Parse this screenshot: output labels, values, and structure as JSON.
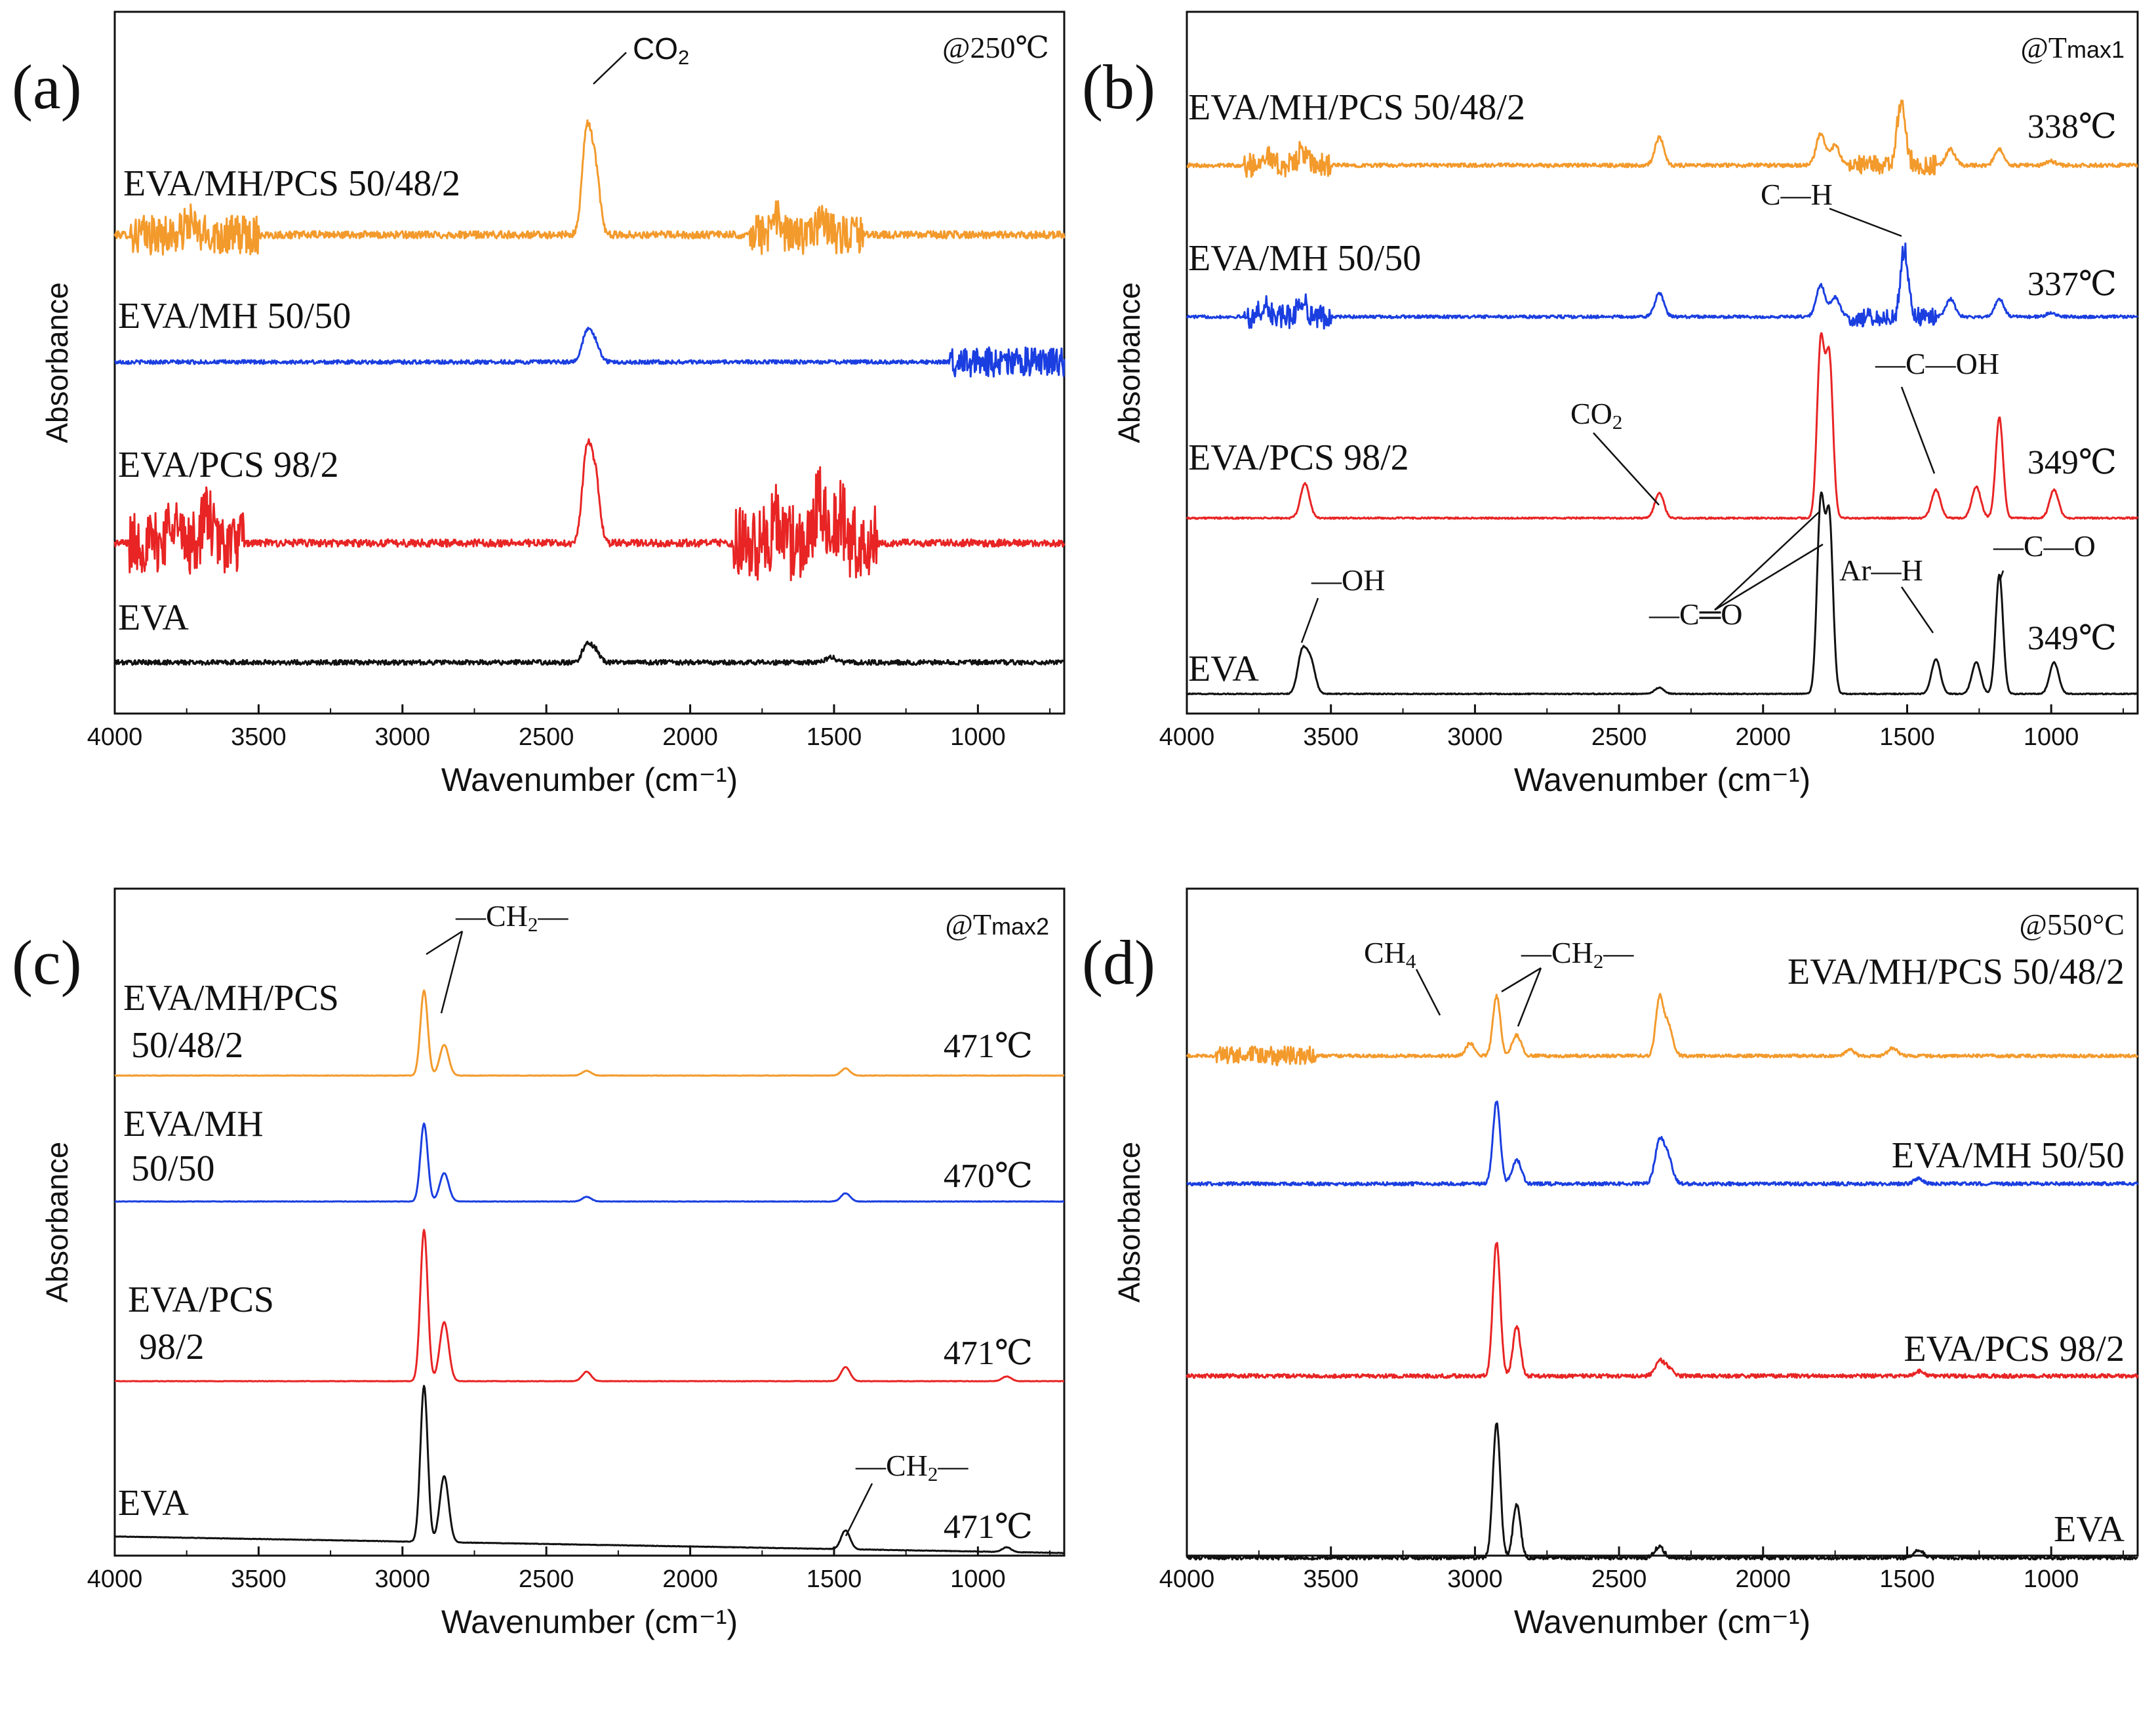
{
  "chart_data": [
    {
      "type": "line",
      "panel_label": "(a)",
      "condition": "@250℃",
      "xlabel": "Wavenumber (cm⁻¹)",
      "ylabel": "Absorbance",
      "xlim": [
        4000,
        700
      ],
      "xticks": [
        "4000",
        "3500",
        "3000",
        "2500",
        "2000",
        "1500",
        "1000"
      ],
      "series": [
        {
          "name": "EVA/MH/PCS 50/48/2",
          "color": "#f39a2c",
          "peaks": [
            [
              3740,
              0.5
            ],
            [
              2360,
              4.0
            ],
            [
              2330,
              2.6
            ],
            [
              1700,
              0.6
            ],
            [
              1540,
              0.7
            ]
          ],
          "noise": 0.3,
          "noise_regions": [
            [
              3950,
              3500,
              1.6
            ],
            [
              1800,
              1400,
              1.6
            ]
          ],
          "slope": 0
        },
        {
          "name": "EVA/MH 50/50",
          "color": "#1a3ee0",
          "peaks": [
            [
              2360,
              1.5
            ],
            [
              2330,
              1.0
            ]
          ],
          "noise": 0.2,
          "noise_regions": [
            [
              1100,
              700,
              1.5
            ]
          ],
          "slope": 0
        },
        {
          "name": "EVA/PCS 98/2",
          "color": "#e82424",
          "peaks": [
            [
              3800,
              1.2
            ],
            [
              3680,
              1.2
            ],
            [
              2360,
              3.5
            ],
            [
              2330,
              2.6
            ],
            [
              1700,
              1.0
            ],
            [
              1550,
              1.9
            ],
            [
              1480,
              1.2
            ]
          ],
          "noise": 0.3,
          "noise_regions": [
            [
              3950,
              3550,
              2.5
            ],
            [
              1850,
              1350,
              3.0
            ]
          ],
          "slope": 0
        },
        {
          "name": "EVA",
          "color": "#111111",
          "peaks": [
            [
              2360,
              0.9
            ],
            [
              2330,
              0.6
            ],
            [
              1510,
              0.3
            ]
          ],
          "noise": 0.25,
          "noise_regions": [],
          "slope": 0
        }
      ],
      "annotations": [
        {
          "text": "CO",
          "sub": "2",
          "at": 2360,
          "style": "sans"
        }
      ]
    },
    {
      "type": "line",
      "panel_label": "(b)",
      "condition": "@T",
      "condition_sub": "max1",
      "xlabel": "Wavenumber (cm⁻¹)",
      "ylabel": "Absorbance",
      "xlim": [
        4000,
        700
      ],
      "xticks": [
        "4000",
        "3500",
        "3000",
        "2500",
        "2000",
        "1500",
        "1000"
      ],
      "series": [
        {
          "name": "EVA/MH/PCS 50/48/2",
          "temp": "338℃",
          "color": "#f39a2c",
          "peaks": [
            [
              3730,
              0.6
            ],
            [
              3600,
              0.7
            ],
            [
              2360,
              1.4
            ],
            [
              1800,
              1.6
            ],
            [
              1750,
              1.0
            ],
            [
              1520,
              3.0
            ],
            [
              1350,
              0.8
            ],
            [
              1180,
              0.8
            ],
            [
              1000,
              0.2
            ]
          ],
          "noise": 0.2,
          "noise_regions": [
            [
              3800,
              3500,
              1.2
            ],
            [
              1700,
              1400,
              1.0
            ]
          ],
          "slope": 0
        },
        {
          "name": "EVA/MH 50/50",
          "temp": "337℃",
          "color": "#1a3ee0",
          "peaks": [
            [
              3730,
              0.5
            ],
            [
              3600,
              0.8
            ],
            [
              2360,
              1.2
            ],
            [
              1800,
              1.6
            ],
            [
              1750,
              1.0
            ],
            [
              1510,
              3.5
            ],
            [
              1350,
              0.9
            ],
            [
              1180,
              0.9
            ],
            [
              1000,
              0.2
            ]
          ],
          "noise": 0.15,
          "noise_regions": [
            [
              3800,
              3500,
              1.2
            ],
            [
              1700,
              1400,
              1.0
            ]
          ],
          "slope": 0
        },
        {
          "name": "EVA/PCS 98/2",
          "temp": "349℃",
          "color": "#e82424",
          "peaks": [
            [
              3590,
              1.1
            ],
            [
              2360,
              0.8
            ],
            [
              1800,
              5.5
            ],
            [
              1770,
              5.0
            ],
            [
              1400,
              0.9
            ],
            [
              1260,
              1.0
            ],
            [
              1180,
              3.2
            ],
            [
              990,
              0.9
            ]
          ],
          "noise": 0.05,
          "noise_regions": [],
          "slope": 0
        },
        {
          "name": "EVA",
          "temp": "349℃",
          "color": "#111111",
          "peaks": [
            [
              3600,
              1.3
            ],
            [
              3570,
              1.0
            ],
            [
              2360,
              0.2
            ],
            [
              1800,
              6.0
            ],
            [
              1770,
              5.5
            ],
            [
              1400,
              1.1
            ],
            [
              1260,
              1.0
            ],
            [
              1180,
              3.8
            ],
            [
              990,
              1.0
            ]
          ],
          "noise": 0.03,
          "noise_regions": [],
          "slope": 0
        }
      ],
      "annotations": [
        {
          "text": "C—H",
          "at": 1510
        },
        {
          "text": "—C—OH",
          "at": 1400
        },
        {
          "text": "CO",
          "sub": "2",
          "at": 2360
        },
        {
          "text": "—OH",
          "at": 3590
        },
        {
          "text": "—C═O",
          "at": 1790
        },
        {
          "text": "Ar—H",
          "at": 1260
        },
        {
          "text": "—C—O",
          "at": 1180
        }
      ]
    },
    {
      "type": "line",
      "panel_label": "(c)",
      "condition": "@T",
      "condition_sub": "max2",
      "xlabel": "Wavenumber (cm⁻¹)",
      "ylabel": "Absorbance",
      "xlim": [
        4000,
        700
      ],
      "xticks": [
        "4000",
        "3500",
        "3000",
        "2500",
        "2000",
        "1500",
        "1000"
      ],
      "series": [
        {
          "name": "EVA/MH/PCS",
          "name2": "50/48/2",
          "temp": "471℃",
          "color": "#f39a2c",
          "peaks": [
            [
              2925,
              3.6
            ],
            [
              2855,
              1.3
            ],
            [
              2360,
              0.2
            ],
            [
              1460,
              0.3
            ]
          ],
          "noise": 0.02,
          "noise_regions": [],
          "slope": 0
        },
        {
          "name": "EVA/MH",
          "name2": "50/50",
          "temp": "470℃",
          "color": "#1a3ee0",
          "peaks": [
            [
              2925,
              3.3
            ],
            [
              2855,
              1.2
            ],
            [
              2360,
              0.2
            ],
            [
              1460,
              0.35
            ]
          ],
          "noise": 0.02,
          "noise_regions": [],
          "slope": 0
        },
        {
          "name": "EVA/PCS",
          "name2": "98/2",
          "temp": "471℃",
          "color": "#e82424",
          "peaks": [
            [
              2925,
              6.4
            ],
            [
              2855,
              2.5
            ],
            [
              2360,
              0.4
            ],
            [
              1460,
              0.6
            ],
            [
              900,
              0.2
            ]
          ],
          "noise": 0.02,
          "noise_regions": [],
          "slope": 0
        },
        {
          "name": "EVA",
          "temp": "471℃",
          "color": "#111111",
          "peaks": [
            [
              2925,
              6.6
            ],
            [
              2855,
              2.8
            ],
            [
              1460,
              0.8
            ],
            [
              900,
              0.2
            ]
          ],
          "noise": 0.02,
          "noise_regions": [],
          "slope": 0.7
        }
      ],
      "annotations": [
        {
          "text": "—CH",
          "sub": "2",
          "tail": "—",
          "at": 2925
        },
        {
          "text": "—CH",
          "sub": "2",
          "tail": "—",
          "at": 1460
        }
      ]
    },
    {
      "type": "line",
      "panel_label": "(d)",
      "condition": "@550°C",
      "xlabel": "Wavenumber (cm⁻¹)",
      "ylabel": "Absorbance",
      "xlim": [
        4000,
        700
      ],
      "xticks": [
        "4000",
        "3500",
        "3000",
        "2500",
        "2000",
        "1500",
        "1000"
      ],
      "series": [
        {
          "name": "EVA/MH/PCS 50/48/2",
          "color": "#f39a2c",
          "peaks": [
            [
              3016,
              0.8
            ],
            [
              2925,
              3.8
            ],
            [
              2855,
              1.3
            ],
            [
              2360,
              3.5
            ],
            [
              2330,
              2.0
            ],
            [
              1700,
              0.4
            ],
            [
              1550,
              0.5
            ]
          ],
          "noise": 0.2,
          "noise_regions": [
            [
              3900,
              3550,
              1.2
            ]
          ],
          "slope": 0
        },
        {
          "name": "EVA/MH 50/50",
          "color": "#1a3ee0",
          "peaks": [
            [
              2925,
              4.8
            ],
            [
              2855,
              1.4
            ],
            [
              2360,
              2.4
            ],
            [
              2330,
              1.5
            ],
            [
              1460,
              0.3
            ]
          ],
          "noise": 0.2,
          "noise_regions": [],
          "slope": 0
        },
        {
          "name": "EVA/PCS 98/2",
          "color": "#e82424",
          "peaks": [
            [
              2925,
              8.5
            ],
            [
              2855,
              3.2
            ],
            [
              2360,
              0.9
            ],
            [
              2330,
              0.5
            ],
            [
              1460,
              0.3
            ]
          ],
          "noise": 0.25,
          "noise_regions": [],
          "slope": 0
        },
        {
          "name": "EVA",
          "color": "#111111",
          "peaks": [
            [
              2925,
              8.6
            ],
            [
              2855,
              3.4
            ],
            [
              2360,
              0.7
            ],
            [
              1460,
              0.5
            ]
          ],
          "noise": 0.25,
          "noise_regions": [],
          "slope": 0
        }
      ],
      "annotations": [
        {
          "text": "CH",
          "sub": "4",
          "at": 3016
        },
        {
          "text": "—CH",
          "sub": "2",
          "tail": "—",
          "at": 2925
        }
      ]
    }
  ]
}
